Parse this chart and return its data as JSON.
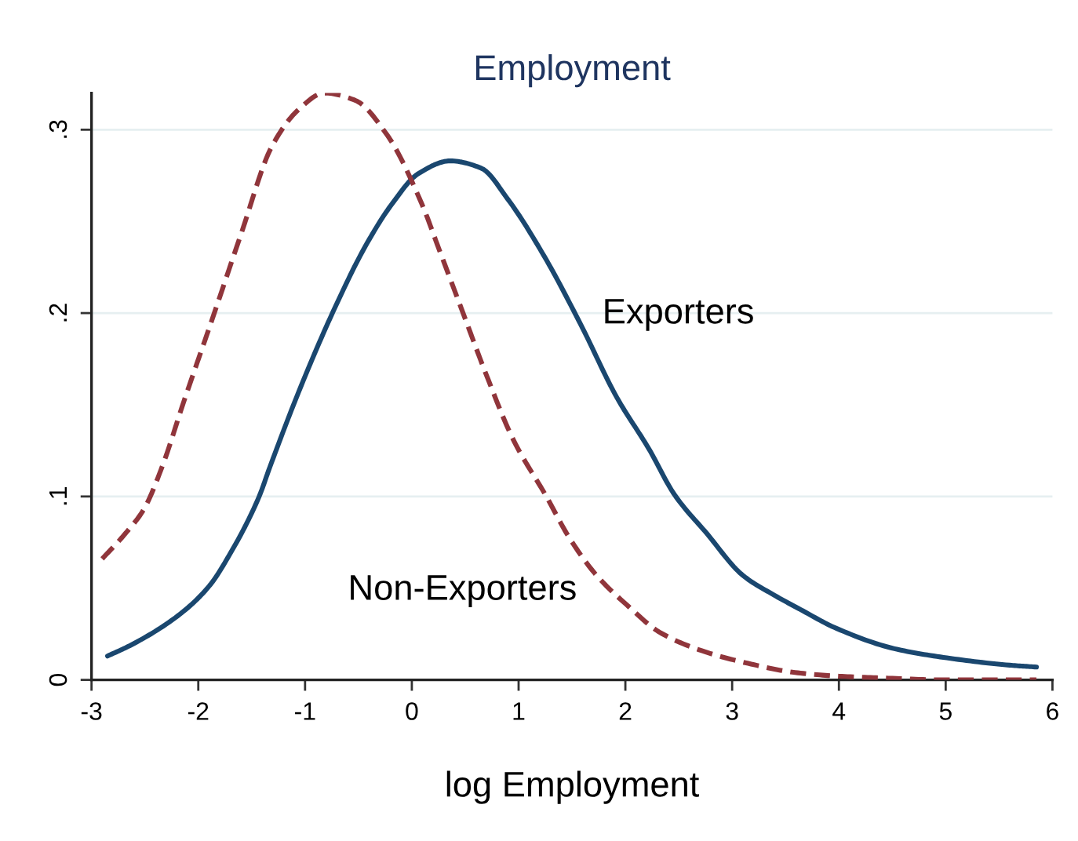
{
  "chart_data": {
    "type": "line",
    "title": "Employment",
    "xlabel": "log Employment",
    "xlim": [
      -3,
      6
    ],
    "xticks": [
      -3,
      -2,
      -1,
      0,
      1,
      2,
      3,
      4,
      5,
      6
    ],
    "ylim": [
      0,
      0.32
    ],
    "yticks": [
      0,
      {
        "value": 0.1,
        "label": ".1"
      },
      {
        "value": 0.2,
        "label": ".2"
      },
      {
        "value": 0.3,
        "label": ".3"
      }
    ],
    "grid": "y",
    "legend": false,
    "series": [
      {
        "name": "Exporters",
        "color": "#1a476f",
        "line_style": "solid",
        "x": [
          -2.85,
          -2.63,
          -2.19,
          -1.9,
          -1.7,
          -1.43,
          -1.33,
          -1.06,
          -0.72,
          -0.43,
          -0.18,
          0.06,
          0.36,
          0.65,
          0.9,
          1.24,
          1.58,
          1.92,
          2.22,
          2.46,
          2.76,
          3.1,
          3.4,
          3.62,
          3.98,
          4.52,
          5.01,
          5.6,
          5.85
        ],
        "values": [
          0.013,
          0.019,
          0.035,
          0.051,
          0.069,
          0.1,
          0.116,
          0.157,
          0.203,
          0.237,
          0.26,
          0.276,
          0.283,
          0.279,
          0.262,
          0.231,
          0.194,
          0.154,
          0.126,
          0.101,
          0.08,
          0.057,
          0.046,
          0.039,
          0.028,
          0.017,
          0.012,
          0.008,
          0.007
        ]
      },
      {
        "name": "Non-Exporters",
        "color": "#90353b",
        "line_style": "dashed",
        "x": [
          -2.9,
          -2.68,
          -2.51,
          -2.34,
          -2.14,
          -1.85,
          -1.6,
          -1.31,
          -1.06,
          -0.82,
          -0.53,
          -0.23,
          0.09,
          0.26,
          0.48,
          0.7,
          0.95,
          1.26,
          1.48,
          1.73,
          2.03,
          2.32,
          2.71,
          3.15,
          3.59,
          4.0,
          4.43,
          5.0,
          5.85
        ],
        "values": [
          0.066,
          0.08,
          0.093,
          0.116,
          0.151,
          0.2,
          0.243,
          0.291,
          0.311,
          0.32,
          0.316,
          0.297,
          0.26,
          0.234,
          0.2,
          0.166,
          0.131,
          0.1,
          0.077,
          0.057,
          0.04,
          0.026,
          0.016,
          0.009,
          0.004,
          0.002,
          0.001,
          0,
          0
        ]
      }
    ]
  }
}
